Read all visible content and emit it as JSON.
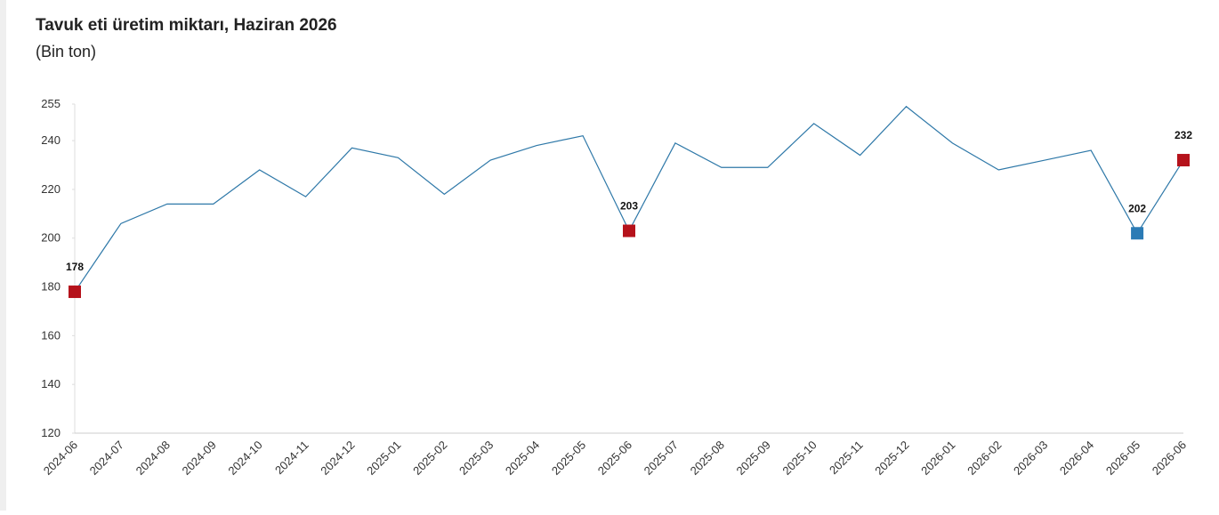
{
  "chart_data": {
    "type": "line",
    "title": "Tavuk eti üretim miktarı, Haziran 2026",
    "subtitle": "(Bin ton)",
    "categories": [
      "2024-06",
      "2024-07",
      "2024-08",
      "2024-09",
      "2024-10",
      "2024-11",
      "2024-12",
      "2025-01",
      "2025-02",
      "2025-03",
      "2025-04",
      "2025-05",
      "2025-06",
      "2025-07",
      "2025-08",
      "2025-09",
      "2025-10",
      "2025-11",
      "2025-12",
      "2026-01",
      "2026-02",
      "2026-03",
      "2026-04",
      "2026-05",
      "2026-06"
    ],
    "values": [
      178,
      206,
      214,
      214,
      228,
      217,
      237,
      233,
      218,
      232,
      238,
      242,
      203,
      239,
      229,
      229,
      247,
      234,
      254,
      239,
      228,
      232,
      236,
      202,
      232
    ],
    "color": "#2e78a8",
    "marker_colors": [
      "#b5121b",
      null,
      null,
      null,
      null,
      null,
      null,
      null,
      null,
      null,
      null,
      null,
      "#b5121b",
      null,
      null,
      null,
      null,
      null,
      null,
      null,
      null,
      null,
      null,
      "#2b7bb5",
      "#b5121b"
    ],
    "ylim": [
      120,
      255
    ],
    "yticks": [
      120,
      140,
      160,
      180,
      200,
      220,
      240,
      255
    ]
  }
}
